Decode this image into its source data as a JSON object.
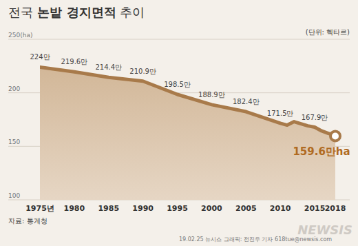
{
  "chart_data": {
    "type": "area",
    "title": "전국 논밭 경지면적 추이",
    "unit_note": "(단위: 헥타르)",
    "source": "자료: 통계청",
    "credit": "19.02.25 뉴시스 그래픽: 전진우 기자 618tue@newsis.com",
    "watermark": "NEWSIS",
    "x": [
      1975,
      1980,
      1985,
      1990,
      1995,
      2000,
      2005,
      2010,
      2011,
      2012,
      2013,
      2014,
      2015,
      2016,
      2017,
      2018
    ],
    "values": [
      224,
      219.6,
      214.4,
      210.9,
      198.5,
      188.9,
      182.4,
      171.5,
      169.8,
      173.0,
      171.1,
      169.1,
      167.9,
      164.4,
      162.1,
      159.6
    ],
    "value_labels": [
      "224만",
      "219.6만",
      "214.4만",
      "210.9만",
      "198.5만",
      "188.9만",
      "182.4만",
      "171.5만",
      null,
      null,
      null,
      null,
      "167.9만",
      null,
      null,
      "159.6만ha"
    ],
    "color": "#a87a4a",
    "xlim": [
      1975,
      2018
    ],
    "xticks": [
      {
        "value": 1975,
        "label": "1975년"
      },
      1980,
      1985,
      1990,
      1995,
      2000,
      2005,
      2010,
      2015,
      2018
    ],
    "ylim": [
      100,
      250
    ],
    "yticks": [
      100,
      150,
      200,
      {
        "value": 250,
        "label": "250(ha)"
      }
    ],
    "grid": true,
    "data_labels": true
  }
}
